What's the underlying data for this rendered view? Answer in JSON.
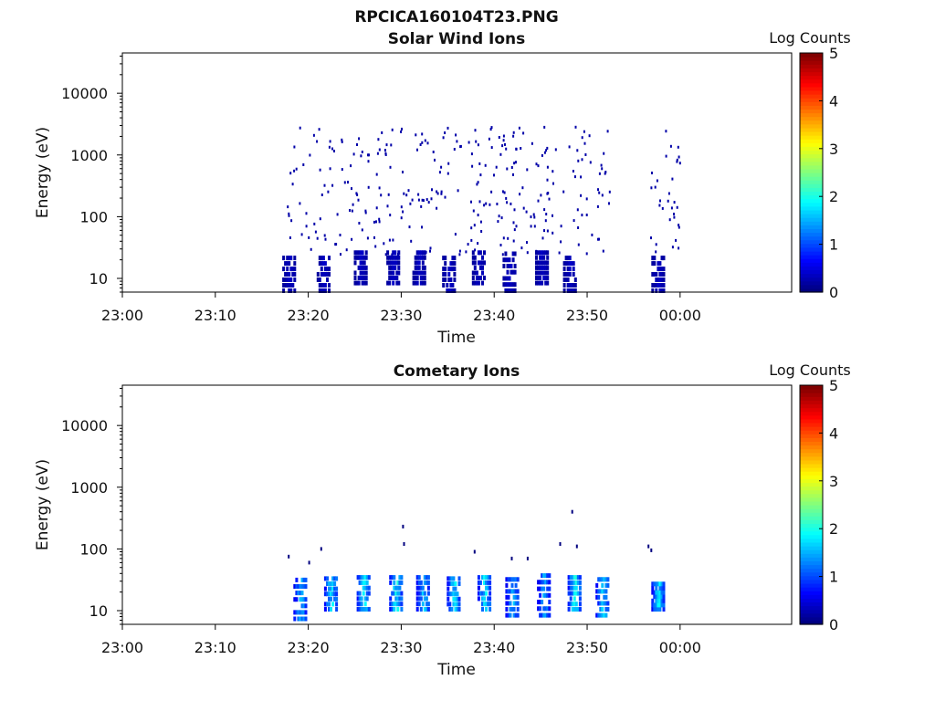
{
  "figure": {
    "title": "RPCICA160104T23.PNG"
  },
  "colors": {
    "frame": "#000000",
    "ion": "#00007f"
  },
  "chart_data": [
    {
      "type": "heatmap",
      "title": "Solar Wind Ions",
      "xlabel": "Time",
      "ylabel": "Energy (eV)",
      "x_range": [
        "23:00",
        "00:12"
      ],
      "y_range": [
        6,
        45000
      ],
      "y_scale": "log",
      "x_ticks": [
        "23:00",
        "23:10",
        "23:20",
        "23:30",
        "23:40",
        "23:50",
        "00:00"
      ],
      "y_ticks": [
        "10",
        "100",
        "1000",
        "10000"
      ],
      "colorbar": {
        "label": "Log Counts",
        "range": [
          0,
          5
        ],
        "ticks": [
          "0",
          "1",
          "2",
          "3",
          "4",
          "5"
        ],
        "colormap": "jet"
      },
      "grid": false,
      "data_span": [
        "23:17",
        "00:00"
      ],
      "bursts": [
        {
          "t": 17.8,
          "e_lo": 6,
          "e_hi": 25,
          "lc": 0.3
        },
        {
          "t": 21.5,
          "e_lo": 6,
          "e_hi": 25,
          "lc": 0.3
        },
        {
          "t": 25.5,
          "e_lo": 8,
          "e_hi": 30,
          "lc": 0.3
        },
        {
          "t": 29.0,
          "e_lo": 8,
          "e_hi": 30,
          "lc": 0.3
        },
        {
          "t": 31.8,
          "e_lo": 8,
          "e_hi": 30,
          "lc": 0.3
        },
        {
          "t": 35.0,
          "e_lo": 6,
          "e_hi": 25,
          "lc": 0.3
        },
        {
          "t": 38.2,
          "e_lo": 8,
          "e_hi": 30,
          "lc": 0.3
        },
        {
          "t": 41.5,
          "e_lo": 6,
          "e_hi": 30,
          "lc": 0.3
        },
        {
          "t": 45.0,
          "e_lo": 8,
          "e_hi": 30,
          "lc": 0.3
        },
        {
          "t": 48.0,
          "e_lo": 6,
          "e_hi": 25,
          "lc": 0.3
        },
        {
          "t": 57.5,
          "e_lo": 6,
          "e_hi": 25,
          "lc": 0.3
        }
      ],
      "scatter_span": [
        [
          17.5,
          52.5
        ],
        [
          56.5,
          60.0
        ]
      ],
      "scatter_energy": [
        25,
        3000
      ],
      "scatter_lc": 0.2
    },
    {
      "type": "heatmap",
      "title": "Cometary Ions",
      "xlabel": "Time",
      "ylabel": "Energy (eV)",
      "x_range": [
        "23:00",
        "00:12"
      ],
      "y_range": [
        6,
        45000
      ],
      "y_scale": "log",
      "x_ticks": [
        "23:00",
        "23:10",
        "23:20",
        "23:30",
        "23:40",
        "23:50",
        "00:00"
      ],
      "y_ticks": [
        "10",
        "100",
        "1000",
        "10000"
      ],
      "colorbar": {
        "label": "Log Counts",
        "range": [
          0,
          5
        ],
        "ticks": [
          "0",
          "1",
          "2",
          "3",
          "4",
          "5"
        ],
        "colormap": "jet"
      },
      "grid": false,
      "bursts": [
        {
          "t": 19.0,
          "e_lo": 7,
          "e_hi": 38,
          "lc": 1.4
        },
        {
          "t": 22.3,
          "e_lo": 10,
          "e_hi": 38,
          "lc": 1.6
        },
        {
          "t": 25.8,
          "e_lo": 10,
          "e_hi": 40,
          "lc": 1.6
        },
        {
          "t": 29.3,
          "e_lo": 10,
          "e_hi": 40,
          "lc": 1.7
        },
        {
          "t": 32.2,
          "e_lo": 10,
          "e_hi": 40,
          "lc": 1.5
        },
        {
          "t": 35.5,
          "e_lo": 10,
          "e_hi": 38,
          "lc": 1.6
        },
        {
          "t": 38.8,
          "e_lo": 10,
          "e_hi": 40,
          "lc": 1.6
        },
        {
          "t": 41.8,
          "e_lo": 8,
          "e_hi": 38,
          "lc": 1.4
        },
        {
          "t": 45.2,
          "e_lo": 8,
          "e_hi": 45,
          "lc": 1.3
        },
        {
          "t": 48.5,
          "e_lo": 10,
          "e_hi": 40,
          "lc": 1.7
        },
        {
          "t": 51.5,
          "e_lo": 8,
          "e_hi": 38,
          "lc": 1.5
        },
        {
          "t": 57.5,
          "e_lo": 10,
          "e_hi": 30,
          "lc": 1.6
        }
      ],
      "sparse_points": [
        {
          "t": 17.8,
          "e": 75
        },
        {
          "t": 20.0,
          "e": 60
        },
        {
          "t": 21.3,
          "e": 100
        },
        {
          "t": 30.1,
          "e": 230
        },
        {
          "t": 30.2,
          "e": 120
        },
        {
          "t": 37.8,
          "e": 90
        },
        {
          "t": 41.8,
          "e": 70
        },
        {
          "t": 43.5,
          "e": 70
        },
        {
          "t": 47.0,
          "e": 120
        },
        {
          "t": 48.3,
          "e": 400
        },
        {
          "t": 48.8,
          "e": 110
        },
        {
          "t": 56.5,
          "e": 110
        },
        {
          "t": 56.8,
          "e": 95
        }
      ]
    }
  ]
}
